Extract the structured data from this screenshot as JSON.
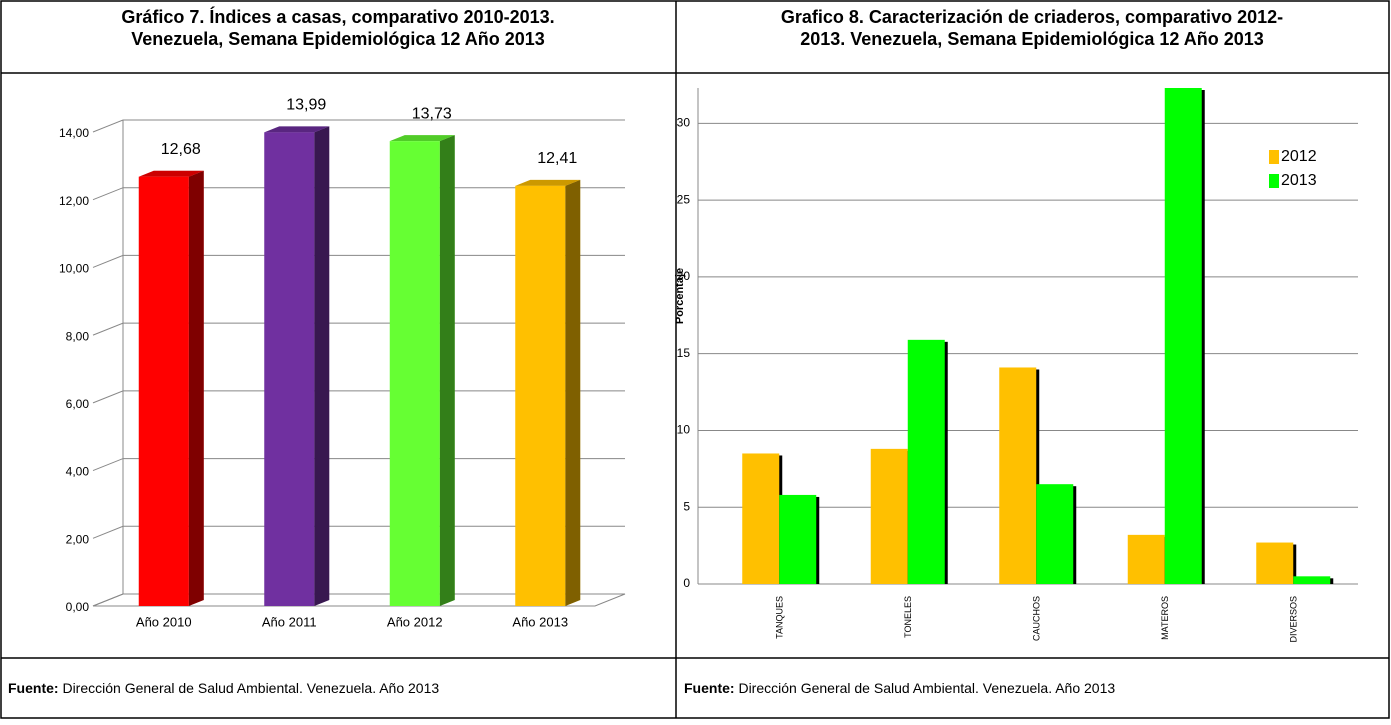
{
  "chart_data": [
    {
      "type": "bar3d",
      "title": [
        "Gráfico 7.  Índices a casas, comparativo 2010-2013.",
        "Venezuela, Semana Epidemiológica 12 Año 2013"
      ],
      "categories": [
        "Año 2010",
        "Año 2011",
        "Año 2012",
        "Año 2013"
      ],
      "values": [
        12.68,
        13.99,
        13.73,
        12.41
      ],
      "value_labels": [
        "12,68",
        "13,99",
        "13,73",
        "12,41"
      ],
      "colors": [
        "#ff0000",
        "#7030a0",
        "#66ff33",
        "#ffc000"
      ],
      "ylim": [
        0,
        14
      ],
      "yticks": [
        {
          "value": 0,
          "label": "0,00"
        },
        {
          "value": 2,
          "label": "2,00"
        },
        {
          "value": 4,
          "label": "4,00"
        },
        {
          "value": 6,
          "label": "6,00"
        },
        {
          "value": 8,
          "label": "8,00"
        },
        {
          "value": 10,
          "label": "10,00"
        },
        {
          "value": 12,
          "label": "12,00"
        },
        {
          "value": 14,
          "label": "14,00"
        }
      ],
      "grid": true,
      "source_label": "Fuente:",
      "source_text": "Dirección General de Salud Ambiental. Venezuela. Año 2013"
    },
    {
      "type": "grouped-bar",
      "title": [
        "Grafico 8. Caracterización de criaderos, comparativo  2012-",
        "2013. Venezuela, Semana Epidemiológica 12 Año 2013"
      ],
      "y_label": "Porcentaje",
      "categories": [
        "TANQUES",
        "TONELES",
        "CAUCHOS",
        "MATEROS",
        "DIVERSOS"
      ],
      "series": [
        {
          "name": "2012",
          "color": "#ffc000",
          "values": [
            8.5,
            8.8,
            14.1,
            3.2,
            2.7
          ]
        },
        {
          "name": "2013",
          "color": "#00ff00",
          "values": [
            5.8,
            15.9,
            6.5,
            32.3,
            0.5
          ]
        }
      ],
      "ylim": [
        0,
        32.3
      ],
      "yticks": [
        0,
        5,
        10,
        15,
        20,
        25,
        30
      ],
      "grid": true,
      "legend": "upper right",
      "source_label": "Fuente:",
      "source_text": "Dirección General de Salud Ambiental. Venezuela. Año 2013"
    }
  ]
}
